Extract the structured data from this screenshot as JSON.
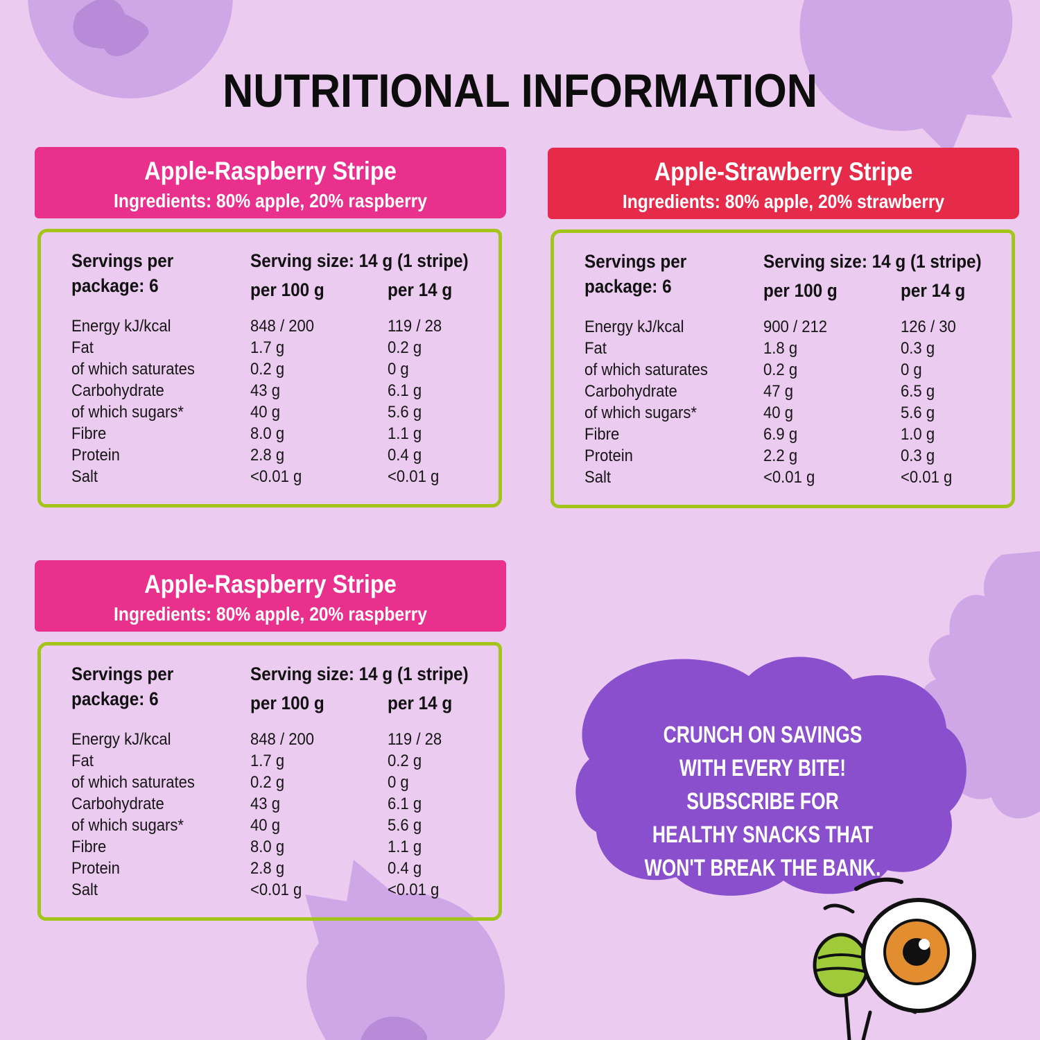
{
  "title": "NUTRITIONAL INFORMATION",
  "colors": {
    "background": "#eccbf0",
    "blob": "#d0a7e6",
    "raspberry_header": "#e8308c",
    "strawberry_header": "#e52a4a",
    "table_border": "#a3c51b",
    "cloud": "#8a4fcc"
  },
  "cards": [
    {
      "name": "Apple-Raspberry Stripe",
      "ingredients": "Ingredients: 80% apple, 20% raspberry",
      "servings_line1": "Servings per",
      "servings_line2": "package: 6",
      "serving_size": "Serving size: 14 g (1 stripe)",
      "col1": "per 100 g",
      "col2": "per 14 g",
      "rows": [
        {
          "label": "Energy kJ/kcal",
          "v100": "848 / 200",
          "v14": "119 / 28"
        },
        {
          "label": "Fat",
          "v100": "1.7 g",
          "v14": "0.2 g"
        },
        {
          "label": "of which saturates",
          "v100": "0.2 g",
          "v14": "0 g"
        },
        {
          "label": "Carbohydrate",
          "v100": "43 g",
          "v14": "6.1 g"
        },
        {
          "label": "of which sugars*",
          "v100": "40 g",
          "v14": "5.6 g"
        },
        {
          "label": "Fibre",
          "v100": "8.0 g",
          "v14": "1.1 g"
        },
        {
          "label": "Protein",
          "v100": "2.8 g",
          "v14": "0.4 g"
        },
        {
          "label": "Salt",
          "v100": "<0.01 g",
          "v14": "<0.01 g"
        }
      ]
    },
    {
      "name": "Apple-Strawberry Stripe",
      "ingredients": "Ingredients: 80% apple, 20% strawberry",
      "servings_line1": "Servings per",
      "servings_line2": "package: 6",
      "serving_size": "Serving size: 14 g (1 stripe)",
      "col1": "per 100 g",
      "col2": "per 14 g",
      "rows": [
        {
          "label": "Energy kJ/kcal",
          "v100": "900 / 212",
          "v14": "126 / 30"
        },
        {
          "label": "Fat",
          "v100": "1.8 g",
          "v14": "0.3 g"
        },
        {
          "label": "of which saturates",
          "v100": "0.2 g",
          "v14": "0 g"
        },
        {
          "label": "Carbohydrate",
          "v100": "47 g",
          "v14": "6.5 g"
        },
        {
          "label": "of which sugars*",
          "v100": "40 g",
          "v14": "5.6 g"
        },
        {
          "label": "Fibre",
          "v100": "6.9 g",
          "v14": "1.0 g"
        },
        {
          "label": "Protein",
          "v100": "2.2 g",
          "v14": "0.3 g"
        },
        {
          "label": "Salt",
          "v100": "<0.01 g",
          "v14": "<0.01 g"
        }
      ]
    },
    {
      "name": "Apple-Raspberry Stripe",
      "ingredients": "Ingredients: 80% apple, 20% raspberry",
      "servings_line1": "Servings per",
      "servings_line2": "package: 6",
      "serving_size": "Serving size: 14 g (1 stripe)",
      "col1": "per 100 g",
      "col2": "per 14 g",
      "rows": [
        {
          "label": "Energy kJ/kcal",
          "v100": "848 / 200",
          "v14": "119 / 28"
        },
        {
          "label": "Fat",
          "v100": "1.7 g",
          "v14": "0.2 g"
        },
        {
          "label": "of which saturates",
          "v100": "0.2 g",
          "v14": "0 g"
        },
        {
          "label": "Carbohydrate",
          "v100": "43 g",
          "v14": "6.1 g"
        },
        {
          "label": "of which sugars*",
          "v100": "40 g",
          "v14": "5.6 g"
        },
        {
          "label": "Fibre",
          "v100": "8.0 g",
          "v14": "1.1 g"
        },
        {
          "label": "Protein",
          "v100": "2.8 g",
          "v14": "0.4 g"
        },
        {
          "label": "Salt",
          "v100": "<0.01 g",
          "v14": "<0.01 g"
        }
      ]
    }
  ],
  "promo": {
    "text": "Crunch on savings with every bite! Subscribe for healthy snacks that won't break the bank."
  },
  "icons": {
    "blueberry": "blueberry-icon",
    "raspberry": "raspberry-icon",
    "mascot": "eyeball-mascot-icon"
  }
}
